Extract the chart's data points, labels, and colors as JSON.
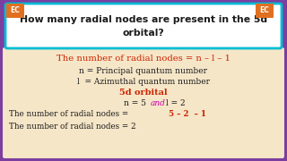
{
  "bg_color": "#7b3fa0",
  "content_bg": "#f5e6c8",
  "header_bg": "#ffffff",
  "header_border": "#00bcd4",
  "header_text_line1": "How many radial nodes are present in the 5d",
  "header_text_line2": "orbital?",
  "header_text_color": "#1a1a1a",
  "ec_label": "EC",
  "ec_bg": "#e07020",
  "ec_text_color": "#ffffff",
  "line1_text": "The number of radial nodes = n – l – 1",
  "line1_color": "#cc2200",
  "line2_text": "n = Principal quantum number",
  "line2_color": "#1a1a1a",
  "line3_text": "l  = Azimuthal quantum number",
  "line3_color": "#1a1a1a",
  "line4_text": "5d orbital",
  "line4_color": "#cc2200",
  "line5_n": "n = 5",
  "line5_and": "and",
  "line5_l": "l = 2",
  "line5_and_color": "#cc00aa",
  "line5_color": "#1a1a1a",
  "line6_prefix": "The number of radial nodes = ",
  "line6_nums": "5 – 2  – 1",
  "line6_color": "#1a1a1a",
  "line6_nums_color": "#cc2200",
  "line7_text": "The number of radial nodes = 2",
  "line7_color": "#1a1a1a"
}
